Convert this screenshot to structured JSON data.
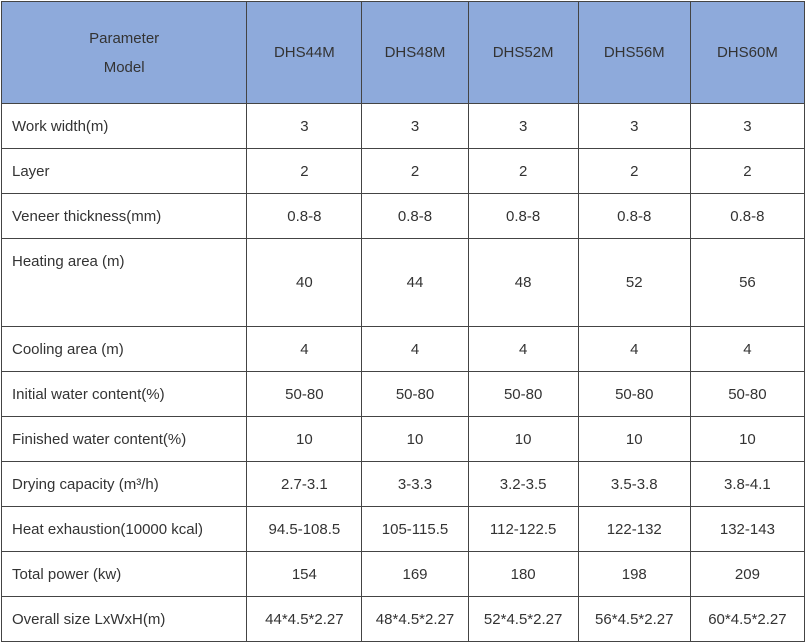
{
  "table": {
    "header": {
      "corner": [
        "Parameter",
        "Model"
      ],
      "models": [
        "DHS44M",
        "DHS48M",
        "DHS52M",
        "DHS56M",
        "DHS60M"
      ]
    },
    "rows": [
      [
        "Work width(m)",
        "3",
        "3",
        "3",
        "3",
        "3"
      ],
      [
        "Layer",
        "2",
        "2",
        "2",
        "2",
        "2"
      ],
      [
        "Veneer  thickness(mm)",
        "0.8-8",
        "0.8-8",
        "0.8-8",
        "0.8-8",
        "0.8-8"
      ],
      [
        "Heating area (m)",
        "40",
        "44",
        "48",
        "52",
        "56"
      ],
      [
        "Cooling area (m)",
        "4",
        "4",
        "4",
        "4",
        "4"
      ],
      [
        "Initial water content(%)",
        "50-80",
        "50-80",
        "50-80",
        "50-80",
        "50-80"
      ],
      [
        "Finished water content(%)",
        "10",
        "10",
        "10",
        "10",
        "10"
      ],
      [
        "Drying capacity (m³/h)",
        "2.7-3.1",
        "3-3.3",
        "3.2-3.5",
        "3.5-3.8",
        "3.8-4.1"
      ],
      [
        "Heat exhaustion(10000 kcal)",
        "94.5-108.5",
        "105-115.5",
        "112-122.5",
        "122-132",
        "132-143"
      ],
      [
        "Total power (kw)",
        "154",
        "169",
        "180",
        "198",
        "209"
      ],
      [
        "Overall size LxWxH(m)",
        "44*4.5*2.27",
        "48*4.5*2.27",
        "52*4.5*2.27",
        "56*4.5*2.27",
        "60*4.5*2.27"
      ]
    ]
  }
}
